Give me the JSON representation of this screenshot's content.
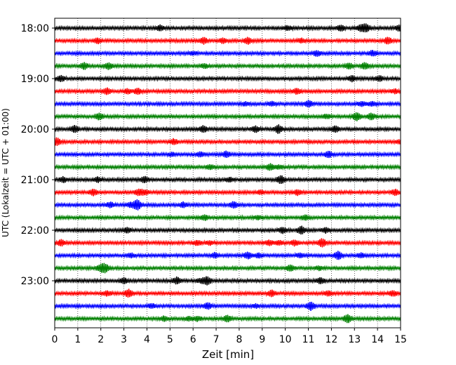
{
  "chart_data": {
    "type": "line",
    "subtype": "helicorder-seismogram",
    "xlabel": "Zeit  [min]",
    "ylabel": "UTC (Lokalzeit = UTC + 01:00)",
    "xlim": [
      0,
      15
    ],
    "x_ticks": [
      0,
      1,
      2,
      3,
      4,
      5,
      6,
      7,
      8,
      9,
      10,
      11,
      12,
      13,
      14,
      15
    ],
    "x_grid": true,
    "x_grid_style": "dotted",
    "y_tick_labels": [
      "18:00",
      "19:00",
      "20:00",
      "21:00",
      "22:00",
      "23:00"
    ],
    "trace_minutes": 15,
    "trace_start_labels": [
      "18:00",
      "18:15",
      "18:30",
      "18:45",
      "19:00",
      "19:15",
      "19:30",
      "19:45",
      "20:00",
      "20:15",
      "20:30",
      "20:45",
      "21:00",
      "21:15",
      "21:30",
      "21:45",
      "22:00",
      "22:15",
      "22:30",
      "22:45",
      "23:00",
      "23:15",
      "23:30",
      "23:45"
    ],
    "trace_colors": [
      "#000000",
      "#ff0000",
      "#0000ff",
      "#008000"
    ],
    "notable_events_min": [
      {
        "trace": "18:00",
        "minute": 13.5
      },
      {
        "trace": "19:45",
        "minute": 13.1
      },
      {
        "trace": "20:00",
        "minute": 9.7
      },
      {
        "trace": "21:00",
        "minute": 9.8
      },
      {
        "trace": "22:00",
        "minute": 10.7
      },
      {
        "trace": "22:15",
        "minute": 11.6
      },
      {
        "trace": "22:30",
        "minute": 12.3
      },
      {
        "trace": "23:00",
        "minute": 6.6
      },
      {
        "trace": "23:15",
        "minute": 3.2
      },
      {
        "trace": "23:30",
        "minute": 11.1
      },
      {
        "trace": "23:45",
        "minute": 12.7
      }
    ]
  }
}
